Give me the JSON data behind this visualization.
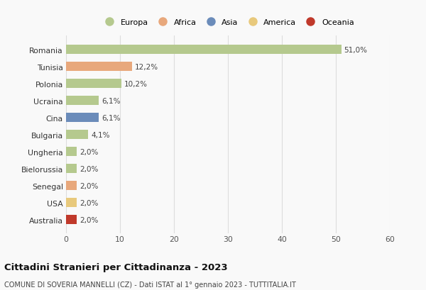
{
  "categories": [
    "Romania",
    "Tunisia",
    "Polonia",
    "Ucraina",
    "Cina",
    "Bulgaria",
    "Ungheria",
    "Bielorussia",
    "Senegal",
    "USA",
    "Australia"
  ],
  "values": [
    51.0,
    12.2,
    10.2,
    6.1,
    6.1,
    4.1,
    2.0,
    2.0,
    2.0,
    2.0,
    2.0
  ],
  "labels": [
    "51,0%",
    "12,2%",
    "10,2%",
    "6,1%",
    "6,1%",
    "4,1%",
    "2,0%",
    "2,0%",
    "2,0%",
    "2,0%",
    "2,0%"
  ],
  "colors": [
    "#b5c98e",
    "#e8a87c",
    "#b5c98e",
    "#b5c98e",
    "#6b8cba",
    "#b5c98e",
    "#b5c98e",
    "#b5c98e",
    "#e8a87c",
    "#e8c97c",
    "#c0392b"
  ],
  "legend": [
    {
      "label": "Europa",
      "color": "#b5c98e"
    },
    {
      "label": "Africa",
      "color": "#e8a87c"
    },
    {
      "label": "Asia",
      "color": "#6b8cba"
    },
    {
      "label": "America",
      "color": "#e8c97c"
    },
    {
      "label": "Oceania",
      "color": "#c0392b"
    }
  ],
  "xlim": [
    0,
    60
  ],
  "xticks": [
    0,
    10,
    20,
    30,
    40,
    50,
    60
  ],
  "title": "Cittadini Stranieri per Cittadinanza - 2023",
  "subtitle": "COMUNE DI SOVERIA MANNELLI (CZ) - Dati ISTAT al 1° gennaio 2023 - TUTTITALIA.IT",
  "background_color": "#f9f9f9",
  "grid_color": "#dddddd"
}
